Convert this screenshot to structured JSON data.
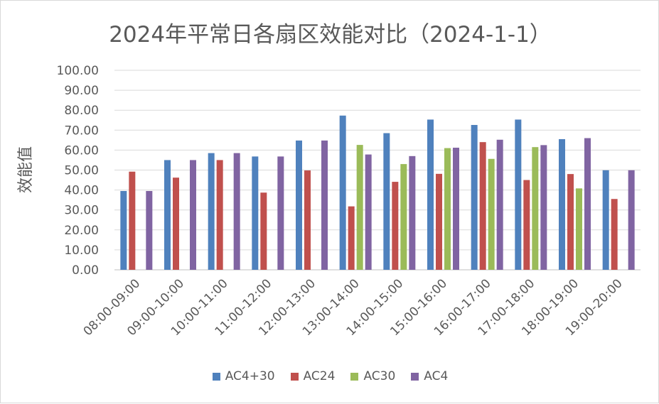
{
  "chart_data": {
    "type": "bar",
    "title": "2024年平常日各扇区效能对比（2024-1-1）",
    "xlabel": "",
    "ylabel": "效能值",
    "ylim": [
      0,
      100
    ],
    "yticks": [
      "0.00",
      "10.00",
      "20.00",
      "30.00",
      "40.00",
      "50.00",
      "60.00",
      "70.00",
      "80.00",
      "90.00",
      "100.00"
    ],
    "grid": true,
    "legend": "bottom",
    "categories": [
      "08:00-09:00",
      "09:00-10:00",
      "10:00-11:00",
      "11:00-12:00",
      "12:00-13:00",
      "13:00-14:00",
      "14:00-15:00",
      "15:00-16:00",
      "16:00-17:00",
      "17:00-18:00",
      "18:00-19:00",
      "19:00-20:00"
    ],
    "series": [
      {
        "name": "AC4+30",
        "color": "#4f81bd",
        "values": [
          39.5,
          55,
          58.5,
          56.8,
          64.8,
          77.3,
          68.5,
          75.3,
          72.6,
          75.3,
          65.5,
          49.9
        ]
      },
      {
        "name": "AC24",
        "color": "#c0504d",
        "values": [
          49.2,
          46.2,
          55,
          38.7,
          49.8,
          31.8,
          44.1,
          48.1,
          64,
          45,
          48,
          35.5
        ]
      },
      {
        "name": "AC30",
        "color": "#9bbb59",
        "values": [
          0,
          0,
          0,
          0,
          0,
          62.6,
          53,
          61,
          55.6,
          61.5,
          40.8,
          0
        ]
      },
      {
        "name": "AC4",
        "color": "#8064a2",
        "values": [
          39.5,
          55,
          58.5,
          56.8,
          64.8,
          57.8,
          57,
          61.2,
          65.2,
          62.5,
          66,
          49.9
        ]
      }
    ]
  }
}
